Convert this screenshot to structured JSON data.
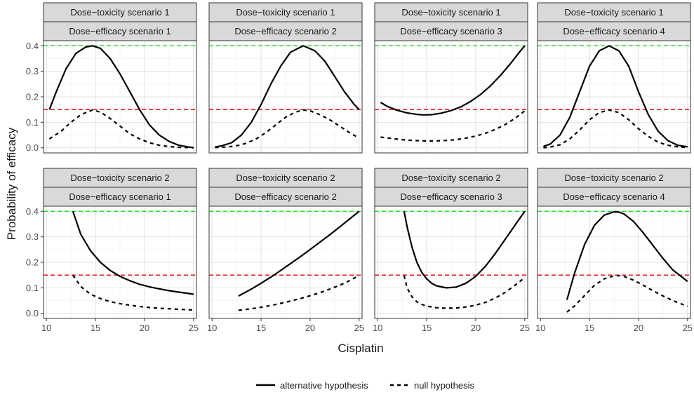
{
  "chart_data": {
    "type": "line",
    "x_label": "Cisplatin",
    "y_label": "Probability of efficacy",
    "x_ticks": [
      10,
      15,
      20,
      25
    ],
    "y_ticks": [
      0.0,
      0.1,
      0.2,
      0.3,
      0.4
    ],
    "x_tick_labels": [
      "10",
      "15",
      "20",
      "25"
    ],
    "y_tick_labels": [
      "0.0",
      "0.1",
      "0.2",
      "0.3",
      "0.4"
    ],
    "xlim": [
      9.7,
      25.3
    ],
    "ylim": [
      -0.02,
      0.42
    ],
    "grid": true,
    "legend_position": "bottom",
    "reference_lines": [
      {
        "y": 0.4,
        "color": "#00e000",
        "style": "dashed"
      },
      {
        "y": 0.15,
        "color": "#e00000",
        "style": "dashed"
      }
    ],
    "series_styles": [
      {
        "name": "alternative hypothesis",
        "key": "alt",
        "style": "solid"
      },
      {
        "name": "null hypothesis",
        "key": "null",
        "style": "dashed"
      }
    ],
    "panels": [
      {
        "strip_top": "Dose−toxicity scenario 1",
        "strip_bottom": "Dose−efficacy scenario 1",
        "alt": {
          "x": [
            10.3,
            11,
            12,
            13,
            14,
            14.7,
            15.5,
            16.5,
            17.5,
            18.5,
            19.5,
            20.5,
            21.5,
            22.5,
            23.5,
            24.5,
            25
          ],
          "y": [
            0.15,
            0.22,
            0.31,
            0.37,
            0.395,
            0.4,
            0.39,
            0.35,
            0.29,
            0.22,
            0.15,
            0.09,
            0.05,
            0.025,
            0.01,
            0.003,
            0.001
          ]
        },
        "null": {
          "x": [
            10.3,
            11.5,
            12.5,
            13.5,
            14.7,
            15.5,
            16.5,
            17.5,
            18.5,
            19.5,
            20.5,
            21.5,
            22.5,
            23.5,
            25
          ],
          "y": [
            0.035,
            0.065,
            0.1,
            0.13,
            0.148,
            0.14,
            0.115,
            0.085,
            0.055,
            0.035,
            0.02,
            0.01,
            0.005,
            0.002,
            0.0
          ]
        }
      },
      {
        "strip_top": "Dose−toxicity scenario 1",
        "strip_bottom": "Dose−efficacy scenario 2",
        "alt": {
          "x": [
            10.3,
            11,
            12,
            13,
            14,
            15,
            16,
            17,
            18,
            19.3,
            20.5,
            21.5,
            22.5,
            23.5,
            24.5,
            25
          ],
          "y": [
            0.003,
            0.008,
            0.02,
            0.05,
            0.1,
            0.17,
            0.25,
            0.32,
            0.375,
            0.4,
            0.38,
            0.34,
            0.28,
            0.22,
            0.17,
            0.15
          ]
        },
        "null": {
          "x": [
            10.3,
            11.5,
            12.5,
            13.5,
            14.5,
            15.5,
            16.5,
            17.5,
            18.5,
            19.3,
            20,
            21,
            22,
            23,
            24,
            25
          ],
          "y": [
            0.001,
            0.003,
            0.008,
            0.018,
            0.035,
            0.06,
            0.09,
            0.12,
            0.14,
            0.148,
            0.145,
            0.13,
            0.11,
            0.085,
            0.06,
            0.038
          ]
        }
      },
      {
        "strip_top": "Dose−toxicity scenario 1",
        "strip_bottom": "Dose−efficacy scenario 3",
        "alt": {
          "x": [
            10.3,
            11,
            12,
            13,
            14,
            14.7,
            15.5,
            16.5,
            17.5,
            18.5,
            19.5,
            20.5,
            21.5,
            22.5,
            23.5,
            24.5,
            25
          ],
          "y": [
            0.178,
            0.162,
            0.147,
            0.137,
            0.131,
            0.129,
            0.13,
            0.136,
            0.146,
            0.161,
            0.182,
            0.209,
            0.243,
            0.283,
            0.328,
            0.377,
            0.4
          ]
        },
        "null": {
          "x": [
            10.3,
            12,
            13,
            14,
            15,
            16,
            17,
            18,
            19,
            20,
            21,
            22,
            23,
            24,
            25
          ],
          "y": [
            0.042,
            0.034,
            0.03,
            0.028,
            0.027,
            0.027,
            0.029,
            0.032,
            0.038,
            0.046,
            0.057,
            0.072,
            0.091,
            0.115,
            0.145
          ]
        }
      },
      {
        "strip_top": "Dose−toxicity scenario 1",
        "strip_bottom": "Dose−efficacy scenario 4",
        "alt": {
          "x": [
            10.3,
            11,
            12,
            13,
            14,
            15,
            16,
            17,
            18,
            19,
            20,
            21,
            22,
            23,
            24,
            25
          ],
          "y": [
            0.005,
            0.015,
            0.05,
            0.12,
            0.22,
            0.32,
            0.38,
            0.4,
            0.38,
            0.32,
            0.22,
            0.13,
            0.065,
            0.028,
            0.01,
            0.004
          ]
        },
        "null": {
          "x": [
            10.3,
            11,
            12,
            13,
            14,
            15,
            16,
            17,
            18,
            19,
            20,
            21,
            22,
            23,
            24,
            25
          ],
          "y": [
            0.0,
            0.003,
            0.012,
            0.035,
            0.07,
            0.11,
            0.138,
            0.148,
            0.138,
            0.11,
            0.075,
            0.045,
            0.022,
            0.01,
            0.004,
            0.001
          ]
        }
      },
      {
        "strip_top": "Dose−toxicity scenario 2",
        "strip_bottom": "Dose−efficacy scenario 1",
        "alt": {
          "x": [
            12.7,
            13.5,
            14.5,
            15.5,
            16.5,
            17.5,
            18.5,
            19.5,
            20.5,
            21.5,
            22.5,
            23.5,
            24.5,
            25
          ],
          "y": [
            0.4,
            0.31,
            0.245,
            0.2,
            0.168,
            0.145,
            0.128,
            0.114,
            0.104,
            0.096,
            0.089,
            0.083,
            0.078,
            0.075
          ]
        },
        "null": {
          "x": [
            12.7,
            13.5,
            14.5,
            15.5,
            16.5,
            17.5,
            18.5,
            19.5,
            20.5,
            21.5,
            22.5,
            23.5,
            24.5,
            25
          ],
          "y": [
            0.15,
            0.105,
            0.075,
            0.058,
            0.046,
            0.038,
            0.032,
            0.027,
            0.023,
            0.02,
            0.018,
            0.016,
            0.014,
            0.013
          ]
        }
      },
      {
        "strip_top": "Dose−toxicity scenario 2",
        "strip_bottom": "Dose−efficacy scenario 2",
        "alt": {
          "x": [
            12.7,
            14,
            15,
            16,
            17,
            18,
            19,
            20,
            21,
            22,
            23,
            24,
            25
          ],
          "y": [
            0.068,
            0.095,
            0.118,
            0.142,
            0.168,
            0.195,
            0.222,
            0.25,
            0.279,
            0.308,
            0.338,
            0.369,
            0.4
          ]
        },
        "null": {
          "x": [
            12.7,
            14,
            15,
            16,
            17,
            18,
            19,
            20,
            21,
            22,
            23,
            24,
            25
          ],
          "y": [
            0.012,
            0.018,
            0.024,
            0.031,
            0.039,
            0.048,
            0.058,
            0.069,
            0.081,
            0.095,
            0.11,
            0.128,
            0.148
          ]
        }
      },
      {
        "strip_top": "Dose−toxicity scenario 2",
        "strip_bottom": "Dose−efficacy scenario 3",
        "alt": {
          "x": [
            12.7,
            13,
            13.5,
            14,
            14.5,
            15,
            15.5,
            16,
            17,
            18,
            19,
            20,
            21,
            22,
            23,
            24,
            25
          ],
          "y": [
            0.4,
            0.34,
            0.26,
            0.2,
            0.16,
            0.135,
            0.118,
            0.108,
            0.1,
            0.103,
            0.118,
            0.145,
            0.185,
            0.235,
            0.29,
            0.345,
            0.4
          ]
        },
        "null": {
          "x": [
            12.7,
            13,
            13.5,
            14,
            14.5,
            15,
            16,
            17,
            18,
            19,
            20,
            21,
            22,
            23,
            24,
            25
          ],
          "y": [
            0.148,
            0.1,
            0.065,
            0.045,
            0.035,
            0.028,
            0.022,
            0.02,
            0.021,
            0.025,
            0.032,
            0.043,
            0.06,
            0.082,
            0.11,
            0.14
          ]
        }
      },
      {
        "strip_top": "Dose−toxicity scenario 2",
        "strip_bottom": "Dose−efficacy scenario 4",
        "alt": {
          "x": [
            12.7,
            13.5,
            14.5,
            15.5,
            16.5,
            17.5,
            18,
            18.5,
            19.5,
            20.5,
            21.5,
            22.5,
            23.5,
            24.5,
            25
          ],
          "y": [
            0.053,
            0.16,
            0.27,
            0.345,
            0.385,
            0.398,
            0.397,
            0.39,
            0.36,
            0.315,
            0.265,
            0.215,
            0.17,
            0.14,
            0.125
          ]
        },
        "null": {
          "x": [
            12.7,
            13.5,
            14.5,
            15.5,
            16.5,
            17.5,
            18,
            18.5,
            19.5,
            20.5,
            21.5,
            22.5,
            23.5,
            24.5,
            25
          ],
          "y": [
            0.005,
            0.03,
            0.07,
            0.11,
            0.135,
            0.147,
            0.148,
            0.145,
            0.13,
            0.11,
            0.088,
            0.068,
            0.05,
            0.035,
            0.028
          ]
        }
      }
    ]
  }
}
